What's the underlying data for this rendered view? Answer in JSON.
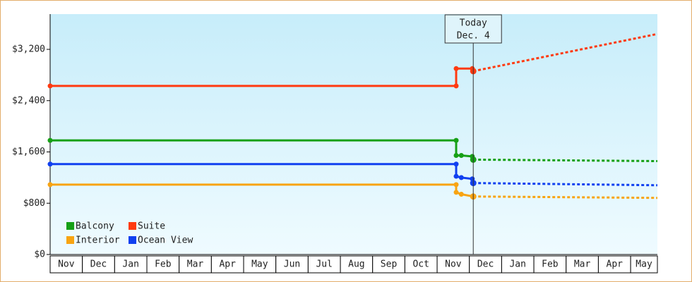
{
  "chart_data": {
    "type": "line",
    "months": [
      "Nov",
      "Dec",
      "Jan",
      "Feb",
      "Mar",
      "Apr",
      "May",
      "Jun",
      "Jul",
      "Aug",
      "Sep",
      "Oct",
      "Nov",
      "Dec",
      "Jan",
      "Feb",
      "Mar",
      "Apr",
      "May"
    ],
    "xlim": [
      0,
      18.83
    ],
    "ylim": [
      0,
      3750
    ],
    "yticks": [
      {
        "value": 0,
        "label": "$0"
      },
      {
        "value": 800,
        "label": "$800"
      },
      {
        "value": 1600,
        "label": "$1,600"
      },
      {
        "value": 2400,
        "label": "$2,400"
      },
      {
        "value": 3200,
        "label": "$3,200"
      }
    ],
    "today": {
      "x": 13.12,
      "label": "Today",
      "date": "Dec. 4"
    },
    "series": [
      {
        "name": "Balcony",
        "color": "#16a016",
        "x": [
          0,
          12.59,
          12.59,
          12.75,
          13.09,
          13.12
        ],
        "values": [
          1780,
          1780,
          1545,
          1545,
          1530,
          1480
        ],
        "forecast_x": [
          13.12,
          18.83
        ],
        "forecast_values": [
          1480,
          1457
        ]
      },
      {
        "name": "Suite",
        "color": "#ff3a10",
        "x": [
          0,
          12.59,
          12.59,
          13.09,
          13.12
        ],
        "values": [
          2630,
          2630,
          2900,
          2900,
          2860
        ],
        "forecast_x": [
          13.12,
          18.83
        ],
        "forecast_values": [
          2860,
          3440
        ]
      },
      {
        "name": "Interior",
        "color": "#f8a412",
        "x": [
          0,
          12.59,
          12.59,
          12.75,
          13.12
        ],
        "values": [
          1090,
          1090,
          970,
          940,
          905
        ],
        "forecast_x": [
          13.12,
          18.83
        ],
        "forecast_values": [
          905,
          883
        ]
      },
      {
        "name": "Ocean View",
        "color": "#1040f0",
        "x": [
          0,
          12.59,
          12.59,
          12.75,
          13.09,
          13.12
        ],
        "values": [
          1410,
          1410,
          1220,
          1200,
          1180,
          1115
        ],
        "forecast_x": [
          13.12,
          18.83
        ],
        "forecast_values": [
          1115,
          1080
        ]
      }
    ]
  }
}
